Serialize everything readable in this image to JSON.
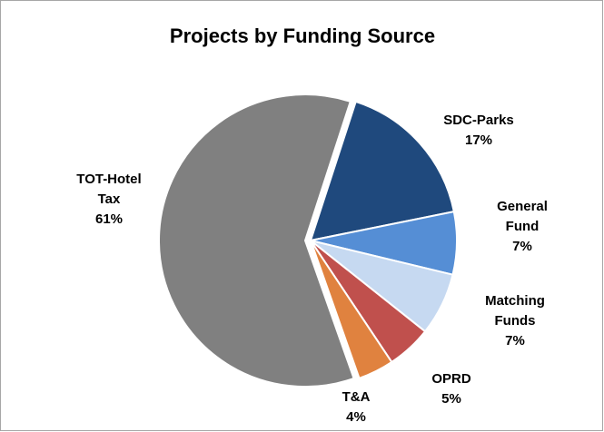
{
  "chart_data": {
    "type": "pie",
    "title": "Projects by Funding Source",
    "categories": [
      "SDC-Parks",
      "General Fund",
      "Matching Funds",
      "OPRD",
      "T&A",
      "TOT-Hotel Tax"
    ],
    "values": [
      17,
      7,
      7,
      5,
      4,
      61
    ],
    "value_labels": [
      "17%",
      "7%",
      "7%",
      "5%",
      "4%",
      "61%"
    ],
    "colors": [
      "#1f497d",
      "#558ed5",
      "#c6d9f1",
      "#c0504d",
      "#e0823f",
      "#808080"
    ]
  }
}
